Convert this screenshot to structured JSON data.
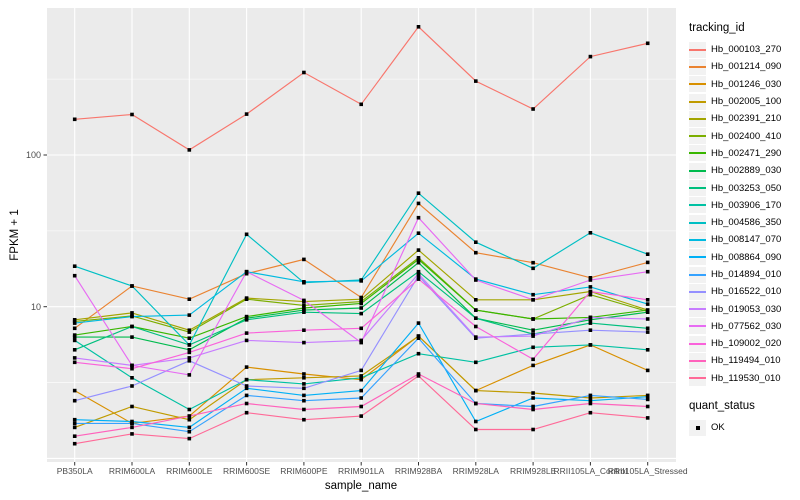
{
  "chart_data": {
    "type": "line",
    "title": "",
    "x_axis": {
      "label": "sample_name",
      "categories": [
        "PB350LA",
        "RRIM600LA",
        "RRIM600LE",
        "RRIM600SE",
        "RRIM600PE",
        "RRIM901LA",
        "RRIM928BA",
        "RRIM928LA",
        "RRIM928LE",
        "RRII105LA_Control",
        "RRII105LA_Stressed"
      ]
    },
    "y_axis": {
      "label": "FPKM + 1",
      "scale": "log10",
      "tick_values": [
        100,
        10
      ],
      "range": [
        1,
        1000
      ],
      "grid": "major and minor white gridlines on gray panel"
    },
    "panel": {
      "background": "#ebebeb",
      "grid_color": "#ffffff"
    },
    "point_marker": {
      "shape": "square",
      "color": "#000000",
      "legend_meaning": "quant_status = OK"
    },
    "legend": {
      "color_title": "tracking_id",
      "shape_title": "quant_status",
      "shape_items": [
        {
          "label": "OK",
          "marker": "black-square"
        }
      ],
      "position": "right"
    },
    "series": [
      {
        "name": "Hb_000103_270",
        "color": "#F8766D",
        "values": [
          172,
          185,
          108,
          186,
          350,
          216,
          700,
          307,
          201,
          445,
          545
        ]
      },
      {
        "name": "Hb_001214_090",
        "color": "#EA8331",
        "values": [
          7.2,
          13.7,
          11.2,
          16.5,
          20.5,
          11.5,
          48,
          22.7,
          19.5,
          15.5,
          19.6
        ]
      },
      {
        "name": "Hb_001246_030",
        "color": "#D89000",
        "values": [
          2.8,
          1.7,
          1.9,
          4.0,
          3.6,
          3.3,
          6.4,
          2.8,
          4.1,
          5.6,
          3.8
        ]
      },
      {
        "name": "Hb_002005_100",
        "color": "#C09B00",
        "values": [
          1.6,
          2.2,
          1.8,
          3.3,
          3.4,
          3.5,
          6.4,
          2.8,
          2.7,
          2.5,
          2.6
        ]
      },
      {
        "name": "Hb_002391_210",
        "color": "#A3A500",
        "values": [
          8.2,
          9.1,
          7.0,
          11.4,
          10.8,
          11.2,
          23.6,
          11.1,
          11.1,
          12.6,
          9.5
        ]
      },
      {
        "name": "Hb_002400_410",
        "color": "#7CAE00",
        "values": [
          8.0,
          8.7,
          6.8,
          11.2,
          10.2,
          10.8,
          21.0,
          9.5,
          8.3,
          12.0,
          9.3
        ]
      },
      {
        "name": "Hb_002471_290",
        "color": "#39B600",
        "values": [
          6.5,
          7.4,
          6.2,
          8.6,
          9.8,
          10.5,
          20.5,
          9.5,
          8.3,
          8.5,
          9.5
        ]
      },
      {
        "name": "Hb_002889_030",
        "color": "#00BB4E",
        "values": [
          6.3,
          6.3,
          5.2,
          8.4,
          9.5,
          9.8,
          19.5,
          8.4,
          7.0,
          8.2,
          9.2
        ]
      },
      {
        "name": "Hb_003253_050",
        "color": "#00BF7D",
        "values": [
          5.2,
          7.4,
          5.6,
          8.2,
          9.2,
          9.0,
          17.0,
          8.4,
          6.6,
          7.8,
          7.2
        ]
      },
      {
        "name": "Hb_003906_170",
        "color": "#00C1A3",
        "values": [
          6.0,
          3.4,
          2.1,
          3.3,
          3.1,
          3.4,
          4.9,
          4.3,
          5.4,
          5.6,
          5.2
        ]
      },
      {
        "name": "Hb_004586_350",
        "color": "#00BFC4",
        "values": [
          18.5,
          13.7,
          5.6,
          30.0,
          14.4,
          15.0,
          56.0,
          26.6,
          17.9,
          30.7,
          22.2
        ]
      },
      {
        "name": "Hb_008147_070",
        "color": "#00BAE0",
        "values": [
          7.8,
          8.6,
          8.8,
          17.0,
          14.6,
          14.8,
          30.5,
          15.2,
          12.0,
          13.5,
          10.4
        ]
      },
      {
        "name": "Hb_008864_090",
        "color": "#00B0F6",
        "values": [
          1.8,
          1.75,
          1.6,
          2.9,
          2.6,
          2.8,
          7.8,
          1.75,
          2.5,
          2.4,
          2.55
        ]
      },
      {
        "name": "Hb_014894_010",
        "color": "#35A2FF",
        "values": [
          1.7,
          1.7,
          1.5,
          2.6,
          2.4,
          2.5,
          6.2,
          2.3,
          2.2,
          2.6,
          2.45
        ]
      },
      {
        "name": "Hb_016522_010",
        "color": "#9590FF",
        "values": [
          2.4,
          3.0,
          4.4,
          3.0,
          2.9,
          3.8,
          16.0,
          6.2,
          6.6,
          7.0,
          6.8
        ]
      },
      {
        "name": "Hb_019053_030",
        "color": "#C77CFF",
        "values": [
          4.6,
          4.1,
          4.6,
          6.0,
          5.8,
          6.0,
          16.5,
          6.3,
          6.4,
          8.5,
          8.3
        ]
      },
      {
        "name": "Hb_077562_030",
        "color": "#E76BF3",
        "values": [
          16.0,
          4.1,
          3.55,
          17.0,
          11.0,
          5.8,
          38.6,
          15.0,
          11.1,
          15.0,
          17.0
        ]
      },
      {
        "name": "Hb_109002_020",
        "color": "#FA62DB",
        "values": [
          4.3,
          3.9,
          5.0,
          6.7,
          7.0,
          7.2,
          15.2,
          7.4,
          4.5,
          12.6,
          11.1
        ]
      },
      {
        "name": "Hb_119494_010",
        "color": "#FF62BC",
        "values": [
          1.4,
          1.6,
          1.9,
          2.3,
          2.1,
          2.2,
          3.6,
          2.3,
          2.1,
          2.3,
          2.2
        ]
      },
      {
        "name": "Hb_119530_010",
        "color": "#FF6A98",
        "values": [
          1.25,
          1.45,
          1.35,
          2.0,
          1.8,
          1.9,
          3.5,
          1.55,
          1.55,
          2.0,
          1.85
        ]
      }
    ]
  }
}
